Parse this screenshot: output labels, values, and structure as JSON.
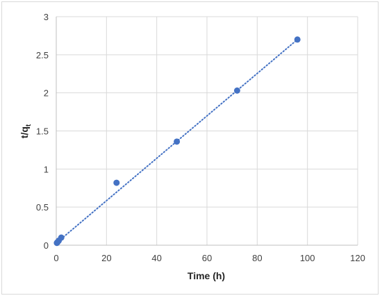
{
  "chart_data": {
    "type": "scatter",
    "title": "",
    "xlabel": "Time (h)",
    "ylabel": {
      "main": "t/q",
      "subscript": "t"
    },
    "xlim": [
      0,
      120
    ],
    "ylim": [
      0,
      3
    ],
    "x_ticks": [
      0,
      20,
      40,
      60,
      80,
      100,
      120
    ],
    "y_ticks": [
      0,
      0.5,
      1,
      1.5,
      2,
      2.5,
      3
    ],
    "x_tick_labels": [
      "0",
      "20",
      "40",
      "60",
      "80",
      "100",
      "120"
    ],
    "y_tick_labels": [
      "0",
      "0.5",
      "1",
      "1.5",
      "2",
      "2.5",
      "3"
    ],
    "grid": true,
    "legend": "none",
    "series": [
      {
        "points": [
          {
            "x": 0.25,
            "y": 0.03
          },
          {
            "x": 0.5,
            "y": 0.04
          },
          {
            "x": 1,
            "y": 0.06
          },
          {
            "x": 2,
            "y": 0.1
          },
          {
            "x": 24,
            "y": 0.82
          },
          {
            "x": 48,
            "y": 1.36
          },
          {
            "x": 72,
            "y": 2.03
          },
          {
            "x": 96,
            "y": 2.7
          }
        ]
      }
    ],
    "trendline": {
      "style": "dotted",
      "from": {
        "x": 0,
        "y": 0.028
      },
      "to": {
        "x": 96,
        "y": 2.7
      }
    },
    "colors": {
      "marker": "#4472c4",
      "trendline": "#4472c4",
      "grid": "#d9d9d9",
      "axis": "#bfbfbf",
      "text": "#404040"
    }
  }
}
